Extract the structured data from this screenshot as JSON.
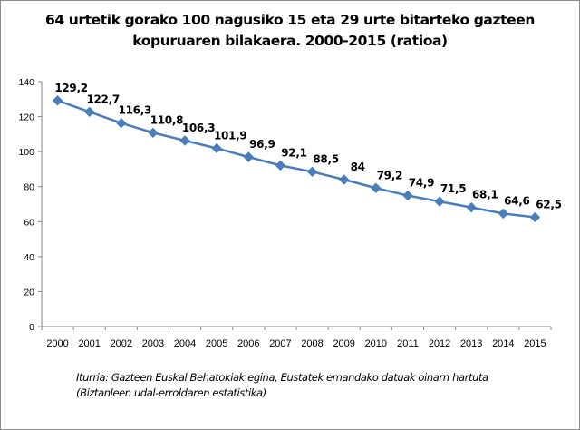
{
  "chart_data": {
    "type": "line",
    "title": [
      "64 urtetik gorako 100 nagusiko 15 eta 29 urte bitarteko gazteen",
      "kopuruaren bilakaera. 2000-2015 (ratioa)"
    ],
    "xlabel": "",
    "ylabel": "",
    "categories": [
      "2000",
      "2001",
      "2002",
      "2003",
      "2004",
      "2005",
      "2006",
      "2007",
      "2008",
      "2009",
      "2010",
      "2011",
      "2012",
      "2013",
      "2014",
      "2015"
    ],
    "series": [
      {
        "name": "Ratioa",
        "values": [
          129.2,
          122.7,
          116.3,
          110.8,
          106.3,
          101.9,
          96.9,
          92.1,
          88.5,
          84,
          79.2,
          74.9,
          71.5,
          68.1,
          64.6,
          62.5
        ],
        "labels": [
          "129,2",
          "122,7",
          "116,3",
          "110,8",
          "106,3",
          "101,9",
          "96,9",
          "92,1",
          "88,5",
          "84",
          "79,2",
          "74,9",
          "71,5",
          "68,1",
          "64,6",
          "62,5"
        ],
        "color": "#4a7ebb"
      }
    ],
    "ylim": [
      0,
      140
    ],
    "yticks": [
      0,
      20,
      40,
      60,
      80,
      100,
      120,
      140
    ],
    "grid": false,
    "legend": "none",
    "marker": "diamond"
  },
  "source_note": [
    "Iturria: Gazteen Euskal Behatokiak egina, Eustatek emandako datuak oinarri hartuta",
    "(Biztanleen udal-erroldaren estatistika)"
  ]
}
